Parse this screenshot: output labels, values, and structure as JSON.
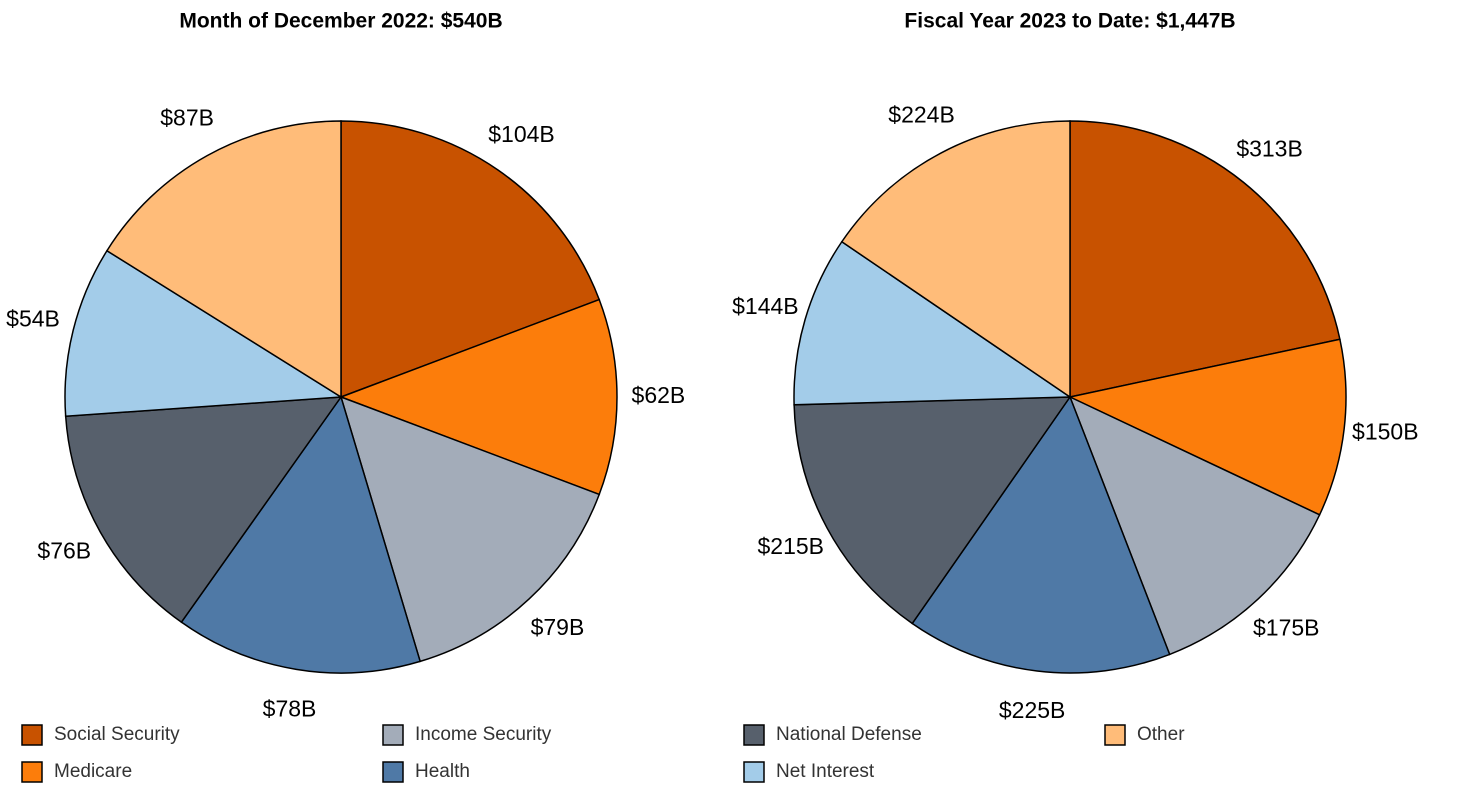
{
  "chart_data": [
    {
      "type": "pie",
      "title": "Month of December 2022: $540B",
      "values": [
        104,
        62,
        79,
        78,
        76,
        54,
        87
      ],
      "value_labels": [
        "$104B",
        "$62B",
        "$79B",
        "$78B",
        "$76B",
        "$54B",
        "$87B"
      ]
    },
    {
      "type": "pie",
      "title": "Fiscal Year 2023 to Date: $1,447B",
      "values": [
        313,
        150,
        175,
        225,
        215,
        144,
        224
      ],
      "value_labels": [
        "$313B",
        "$150B",
        "$175B",
        "$225B",
        "$215B",
        "$144B",
        "$224B"
      ]
    }
  ],
  "legend": {
    "categories": [
      "Social Security",
      "Medicare",
      "Income Security",
      "Health",
      "National Defense",
      "Net Interest",
      "Other"
    ],
    "colors": [
      "#c85200",
      "#fc7d0b",
      "#a3acb9",
      "#4f79a6",
      "#57606c",
      "#a3cce9",
      "#ffbc79"
    ]
  }
}
